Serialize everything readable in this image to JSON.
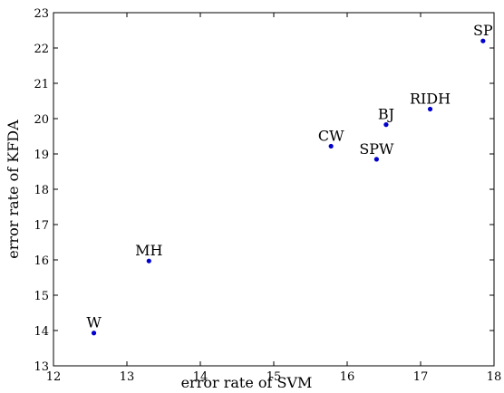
{
  "chart_data": {
    "type": "scatter",
    "title": "",
    "xlabel": "error rate of SVM",
    "ylabel": "error rate of KFDA",
    "xlim": [
      12,
      18
    ],
    "ylim": [
      13,
      23
    ],
    "xticks": [
      "12",
      "13",
      "14",
      "15",
      "16",
      "17",
      "18"
    ],
    "yticks": [
      "13",
      "14",
      "15",
      "16",
      "17",
      "18",
      "19",
      "20",
      "21",
      "22",
      "23"
    ],
    "grid": false,
    "marker_color": "#0000cc",
    "points": [
      {
        "label": "W",
        "x": 12.55,
        "y": 13.93
      },
      {
        "label": "MH",
        "x": 13.3,
        "y": 15.97
      },
      {
        "label": "CW",
        "x": 15.78,
        "y": 19.22
      },
      {
        "label": "SPW",
        "x": 16.4,
        "y": 18.85
      },
      {
        "label": "BJ",
        "x": 16.53,
        "y": 19.83
      },
      {
        "label": "RIDH",
        "x": 17.13,
        "y": 20.27
      },
      {
        "label": "SP",
        "x": 17.85,
        "y": 22.2
      }
    ]
  }
}
